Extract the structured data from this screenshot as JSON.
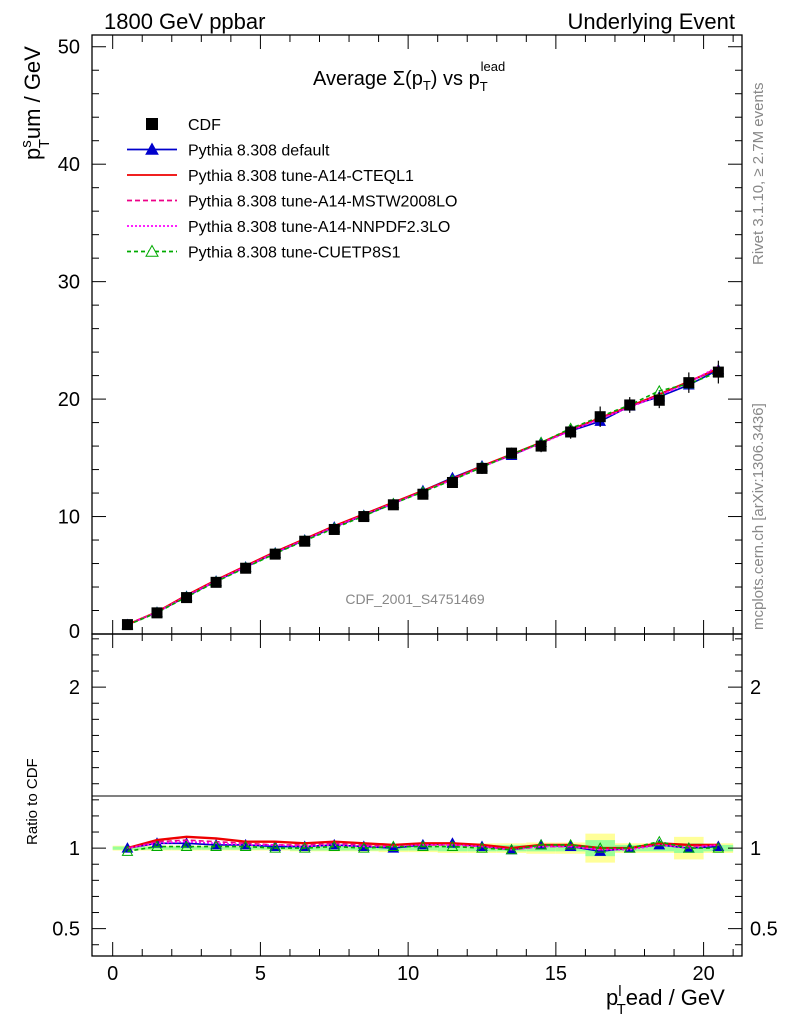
{
  "header": {
    "left": "1800 GeV ppbar",
    "right": "Underlying Event"
  },
  "side_labels": {
    "rivet": "Rivet 3.1.10, ≥ 2.7M events",
    "mcplots": "mcplots.cern.ch [arXiv:1306.3436]"
  },
  "chart_data": {
    "type": "line",
    "title": "Average Σ(p_T) vs p_T^lead",
    "title_parts": {
      "main": "Average Σ(p",
      "sub": "T",
      "mid": ") vs p",
      "sub2": "T",
      "sup2": "lead"
    },
    "ylabel_parts": {
      "p": "p",
      "sup": "s",
      "sub": "T",
      "rest": "um / GeV"
    },
    "xlabel_parts": {
      "p": "p",
      "sup": "l",
      "sub": "T",
      "rest": "ead / GeV"
    },
    "ratio_ylabel": "Ratio to CDF",
    "watermark": "CDF_2001_S4751469",
    "xlim": [
      -0.7,
      21.3
    ],
    "ylim": [
      0,
      51
    ],
    "ratio_ylim": [
      0.33,
      2.33
    ],
    "x_ticks": [
      0,
      5,
      10,
      15,
      20
    ],
    "x_tick_labels": [
      "0",
      "5",
      "10",
      "15",
      "20"
    ],
    "y_ticks": [
      10,
      20,
      30,
      40,
      50
    ],
    "y_tick_labels": [
      "10",
      "20",
      "30",
      "40",
      "50"
    ],
    "y_zero_label": "0",
    "ratio_ticks": [
      0.5,
      1,
      2
    ],
    "ratio_tick_labels": [
      "0.5",
      "1",
      "2"
    ],
    "x": [
      0.5,
      1.5,
      2.5,
      3.5,
      4.5,
      5.5,
      6.5,
      7.5,
      8.5,
      9.5,
      10.5,
      11.5,
      12.5,
      13.5,
      14.5,
      15.5,
      16.5,
      17.5,
      18.5,
      19.5,
      20.5
    ],
    "data": {
      "name": "CDF",
      "values": [
        0.8,
        1.8,
        3.1,
        4.4,
        5.6,
        6.8,
        7.9,
        8.9,
        10.0,
        11.0,
        11.9,
        12.9,
        14.1,
        15.4,
        16.0,
        17.2,
        18.5,
        19.5,
        19.9,
        21.4,
        22.3
      ],
      "errors": [
        0.05,
        0.08,
        0.1,
        0.1,
        0.1,
        0.12,
        0.12,
        0.15,
        0.15,
        0.2,
        0.2,
        0.25,
        0.3,
        0.3,
        0.35,
        0.4,
        0.7,
        0.5,
        0.5,
        0.7,
        0.8
      ]
    },
    "series": [
      {
        "name": "Pythia 8.308 default",
        "color": "#0000cc",
        "dash": "",
        "marker": "triangle-filled",
        "values": [
          0.8,
          1.85,
          3.2,
          4.5,
          5.7,
          6.9,
          8.0,
          9.1,
          10.1,
          11.1,
          12.2,
          13.3,
          14.3,
          15.2,
          16.3,
          17.3,
          18.1,
          19.4,
          20.2,
          21.2,
          22.5
        ],
        "ratio": [
          1.0,
          1.03,
          1.03,
          1.02,
          1.02,
          1.01,
          1.01,
          1.02,
          1.01,
          1.0,
          1.02,
          1.03,
          1.01,
          0.99,
          1.02,
          1.01,
          0.98,
          1.0,
          1.02,
          1.0,
          1.01
        ]
      },
      {
        "name": "Pythia 8.308 tune-A14-CTEQL1",
        "color": "#ee0000",
        "dash": "",
        "marker": "none",
        "values": [
          0.8,
          1.88,
          3.3,
          4.6,
          5.8,
          7.0,
          8.1,
          9.2,
          10.2,
          11.2,
          12.2,
          13.2,
          14.3,
          15.3,
          16.3,
          17.4,
          18.4,
          19.4,
          20.4,
          21.5,
          22.6
        ],
        "ratio": [
          1.0,
          1.05,
          1.07,
          1.06,
          1.04,
          1.04,
          1.03,
          1.04,
          1.03,
          1.02,
          1.03,
          1.03,
          1.02,
          1.0,
          1.02,
          1.02,
          1.0,
          1.0,
          1.03,
          1.02,
          1.02
        ]
      },
      {
        "name": "Pythia 8.308 tune-A14-MSTW2008LO",
        "color": "#ee0088",
        "dash": "5,3",
        "marker": "none",
        "values": [
          0.8,
          1.86,
          3.25,
          4.55,
          5.75,
          6.95,
          8.05,
          9.15,
          10.15,
          11.15,
          12.15,
          13.15,
          14.25,
          15.25,
          16.25,
          17.35,
          18.35,
          19.35,
          20.35,
          21.45,
          22.7
        ],
        "ratio": [
          1.0,
          1.04,
          1.05,
          1.04,
          1.03,
          1.02,
          1.02,
          1.03,
          1.02,
          1.01,
          1.02,
          1.02,
          1.01,
          0.99,
          1.01,
          1.01,
          0.99,
          1.0,
          1.02,
          1.01,
          1.02
        ]
      },
      {
        "name": "Pythia 8.308 tune-A14-NNPDF2.3LO",
        "color": "#ff00ff",
        "dash": "2,2",
        "marker": "none",
        "values": [
          0.8,
          1.85,
          3.22,
          4.52,
          5.72,
          6.92,
          8.02,
          9.12,
          10.12,
          11.12,
          12.12,
          13.12,
          14.22,
          15.22,
          16.22,
          17.3,
          18.3,
          19.3,
          20.3,
          21.4,
          22.8
        ],
        "ratio": [
          1.0,
          1.03,
          1.04,
          1.03,
          1.02,
          1.02,
          1.01,
          1.02,
          1.01,
          1.01,
          1.02,
          1.02,
          1.01,
          0.99,
          1.01,
          1.01,
          0.99,
          0.99,
          1.02,
          1.0,
          1.02
        ]
      },
      {
        "name": "Pythia 8.308 tune-CUETP8S1",
        "color": "#00aa00",
        "dash": "4,3",
        "marker": "triangle-open",
        "values": [
          0.75,
          1.82,
          3.15,
          4.45,
          5.65,
          6.85,
          7.95,
          9.0,
          10.05,
          11.1,
          12.1,
          13.1,
          14.2,
          15.3,
          16.3,
          17.5,
          18.5,
          19.5,
          20.7,
          21.3,
          22.3
        ],
        "ratio": [
          0.98,
          1.01,
          1.01,
          1.01,
          1.01,
          1.0,
          1.0,
          1.01,
          1.0,
          1.01,
          1.01,
          1.01,
          1.0,
          0.99,
          1.02,
          1.02,
          1.0,
          1.0,
          1.04,
          1.0,
          1.0
        ]
      }
    ],
    "ratio_band": {
      "x_edges": [
        0,
        1,
        2,
        3,
        4,
        5,
        6,
        7,
        8,
        9,
        10,
        11,
        12,
        13,
        14,
        15,
        16,
        17,
        18,
        19,
        20,
        21
      ],
      "inner": [
        0.01,
        0.01,
        0.01,
        0.01,
        0.01,
        0.01,
        0.015,
        0.015,
        0.015,
        0.015,
        0.015,
        0.02,
        0.02,
        0.02,
        0.02,
        0.02,
        0.05,
        0.02,
        0.02,
        0.03,
        0.02
      ],
      "outer": [
        0.015,
        0.015,
        0.015,
        0.015,
        0.015,
        0.015,
        0.02,
        0.02,
        0.02,
        0.025,
        0.025,
        0.03,
        0.03,
        0.03,
        0.035,
        0.035,
        0.09,
        0.03,
        0.03,
        0.07,
        0.03
      ]
    }
  }
}
